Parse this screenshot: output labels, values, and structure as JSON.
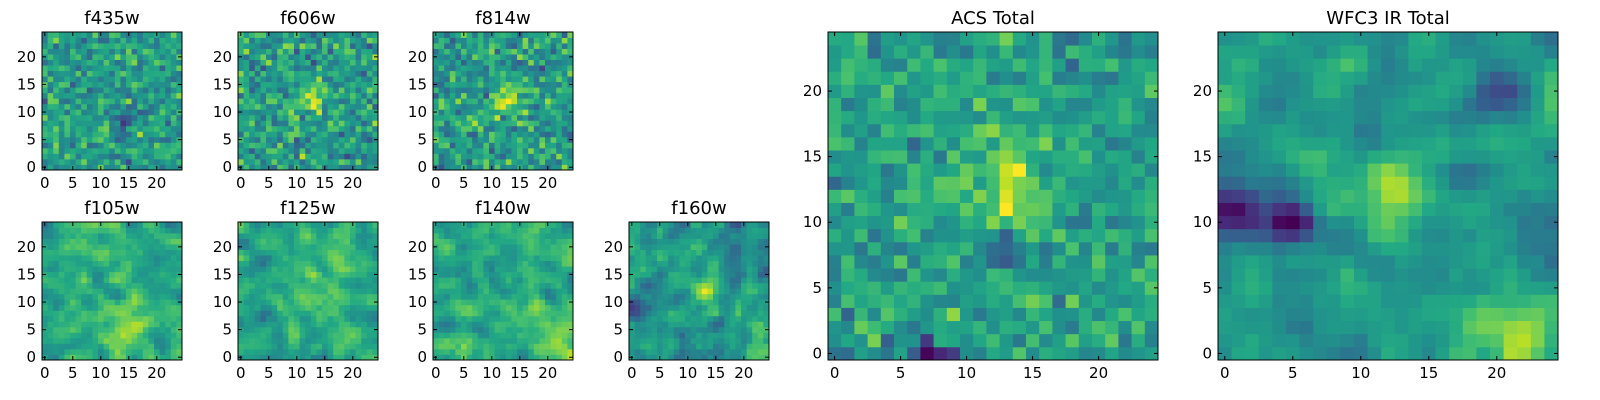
{
  "figure": {
    "panel_count": 9,
    "colormap": "viridis"
  },
  "chart_data": [
    {
      "type": "heatmap",
      "title": "f435w",
      "xticks": [
        "0",
        "5",
        "10",
        "15",
        "20"
      ],
      "yticks": [
        "0",
        "5",
        "10",
        "15",
        "20"
      ],
      "xlim": [
        0,
        25
      ],
      "ylim": [
        0,
        25
      ],
      "grid_size": 25,
      "seed": 11,
      "smooth": 0,
      "mean": 0.55,
      "spread": 0.2,
      "blobs": [
        {
          "x": 14,
          "y": 8.5,
          "a": -0.45,
          "s": 1.2
        }
      ]
    },
    {
      "type": "heatmap",
      "title": "f606w",
      "xticks": [
        "0",
        "5",
        "10",
        "15",
        "20"
      ],
      "yticks": [
        "0",
        "5",
        "10",
        "15",
        "20"
      ],
      "xlim": [
        0,
        25
      ],
      "ylim": [
        0,
        25
      ],
      "grid_size": 25,
      "seed": 23,
      "smooth": 0,
      "mean": 0.55,
      "spread": 0.22,
      "blobs": [
        {
          "x": 12.5,
          "y": 12.5,
          "a": 0.25,
          "s": 2.0
        }
      ]
    },
    {
      "type": "heatmap",
      "title": "f814w",
      "xticks": [
        "0",
        "5",
        "10",
        "15",
        "20"
      ],
      "yticks": [
        "0",
        "5",
        "10",
        "15",
        "20"
      ],
      "xlim": [
        0,
        25
      ],
      "ylim": [
        0,
        25
      ],
      "grid_size": 25,
      "seed": 37,
      "smooth": 0,
      "mean": 0.55,
      "spread": 0.22,
      "blobs": [
        {
          "x": 13,
          "y": 12.5,
          "a": 0.3,
          "s": 2.0
        }
      ]
    },
    {
      "type": "heatmap",
      "title": "f105w",
      "xticks": [
        "0",
        "5",
        "10",
        "15",
        "20"
      ],
      "yticks": [
        "0",
        "5",
        "10",
        "15",
        "20"
      ],
      "xlim": [
        0,
        25
      ],
      "ylim": [
        0,
        25
      ],
      "grid_size": 25,
      "seed": 41,
      "smooth": 1,
      "mean": 0.6,
      "spread": 0.18,
      "blobs": [
        {
          "x": 15,
          "y": 5,
          "a": 0.25,
          "s": 3.0
        }
      ]
    },
    {
      "type": "heatmap",
      "title": "f125w",
      "xticks": [
        "0",
        "5",
        "10",
        "15",
        "20"
      ],
      "yticks": [
        "0",
        "5",
        "10",
        "15",
        "20"
      ],
      "xlim": [
        0,
        25
      ],
      "ylim": [
        0,
        25
      ],
      "grid_size": 25,
      "seed": 53,
      "smooth": 1,
      "mean": 0.6,
      "spread": 0.18,
      "blobs": [
        {
          "x": 13,
          "y": 12,
          "a": 0.2,
          "s": 2.5
        }
      ]
    },
    {
      "type": "heatmap",
      "title": "f140w",
      "xticks": [
        "0",
        "5",
        "10",
        "15",
        "20"
      ],
      "yticks": [
        "0",
        "5",
        "10",
        "15",
        "20"
      ],
      "xlim": [
        0,
        25
      ],
      "ylim": [
        0,
        25
      ],
      "grid_size": 25,
      "seed": 67,
      "smooth": 1,
      "mean": 0.62,
      "spread": 0.18,
      "blobs": [
        {
          "x": 22,
          "y": 2,
          "a": 0.25,
          "s": 3.0
        }
      ]
    },
    {
      "type": "heatmap",
      "title": "f160w",
      "xticks": [
        "0",
        "5",
        "10",
        "15",
        "20"
      ],
      "yticks": [
        "0",
        "5",
        "10",
        "15",
        "20"
      ],
      "xlim": [
        0,
        25
      ],
      "ylim": [
        0,
        25
      ],
      "grid_size": 25,
      "seed": 79,
      "smooth": 1,
      "mean": 0.52,
      "spread": 0.22,
      "blobs": [
        {
          "x": 13,
          "y": 12,
          "a": 0.35,
          "s": 1.5
        },
        {
          "x": 1,
          "y": 10,
          "a": -0.35,
          "s": 1.5
        },
        {
          "x": 22,
          "y": 1,
          "a": 0.3,
          "s": 2.5
        }
      ]
    },
    {
      "type": "heatmap",
      "title": "ACS Total",
      "xticks": [
        "0",
        "5",
        "10",
        "15",
        "20"
      ],
      "yticks": [
        "0",
        "5",
        "10",
        "15",
        "20"
      ],
      "xlim": [
        0,
        25
      ],
      "ylim": [
        0,
        25
      ],
      "grid_size": 25,
      "seed": 97,
      "smooth": 0,
      "mean": 0.56,
      "spread": 0.17,
      "blobs": [
        {
          "x": 13,
          "y": 12.5,
          "a": 0.3,
          "s": 2.2
        },
        {
          "x": 13,
          "y": 8,
          "a": -0.4,
          "s": 0.9
        },
        {
          "x": 7,
          "y": 0,
          "a": -0.4,
          "s": 1.2
        }
      ]
    },
    {
      "type": "heatmap",
      "title": "WFC3 IR Total",
      "xticks": [
        "0",
        "5",
        "10",
        "15",
        "20"
      ],
      "yticks": [
        "0",
        "5",
        "10",
        "15",
        "20"
      ],
      "xlim": [
        0,
        25
      ],
      "ylim": [
        0,
        25
      ],
      "grid_size": 25,
      "seed": 131,
      "smooth": 1,
      "mean": 0.52,
      "spread": 0.15,
      "blobs": [
        {
          "x": 12.5,
          "y": 12.5,
          "a": 0.35,
          "s": 1.8
        },
        {
          "x": 1,
          "y": 10.5,
          "a": -0.5,
          "s": 1.8
        },
        {
          "x": 5,
          "y": 10,
          "a": -0.45,
          "s": 1.0
        },
        {
          "x": 22,
          "y": 1.5,
          "a": 0.35,
          "s": 2.5
        },
        {
          "x": 20,
          "y": 20,
          "a": -0.35,
          "s": 1.2
        }
      ]
    }
  ]
}
